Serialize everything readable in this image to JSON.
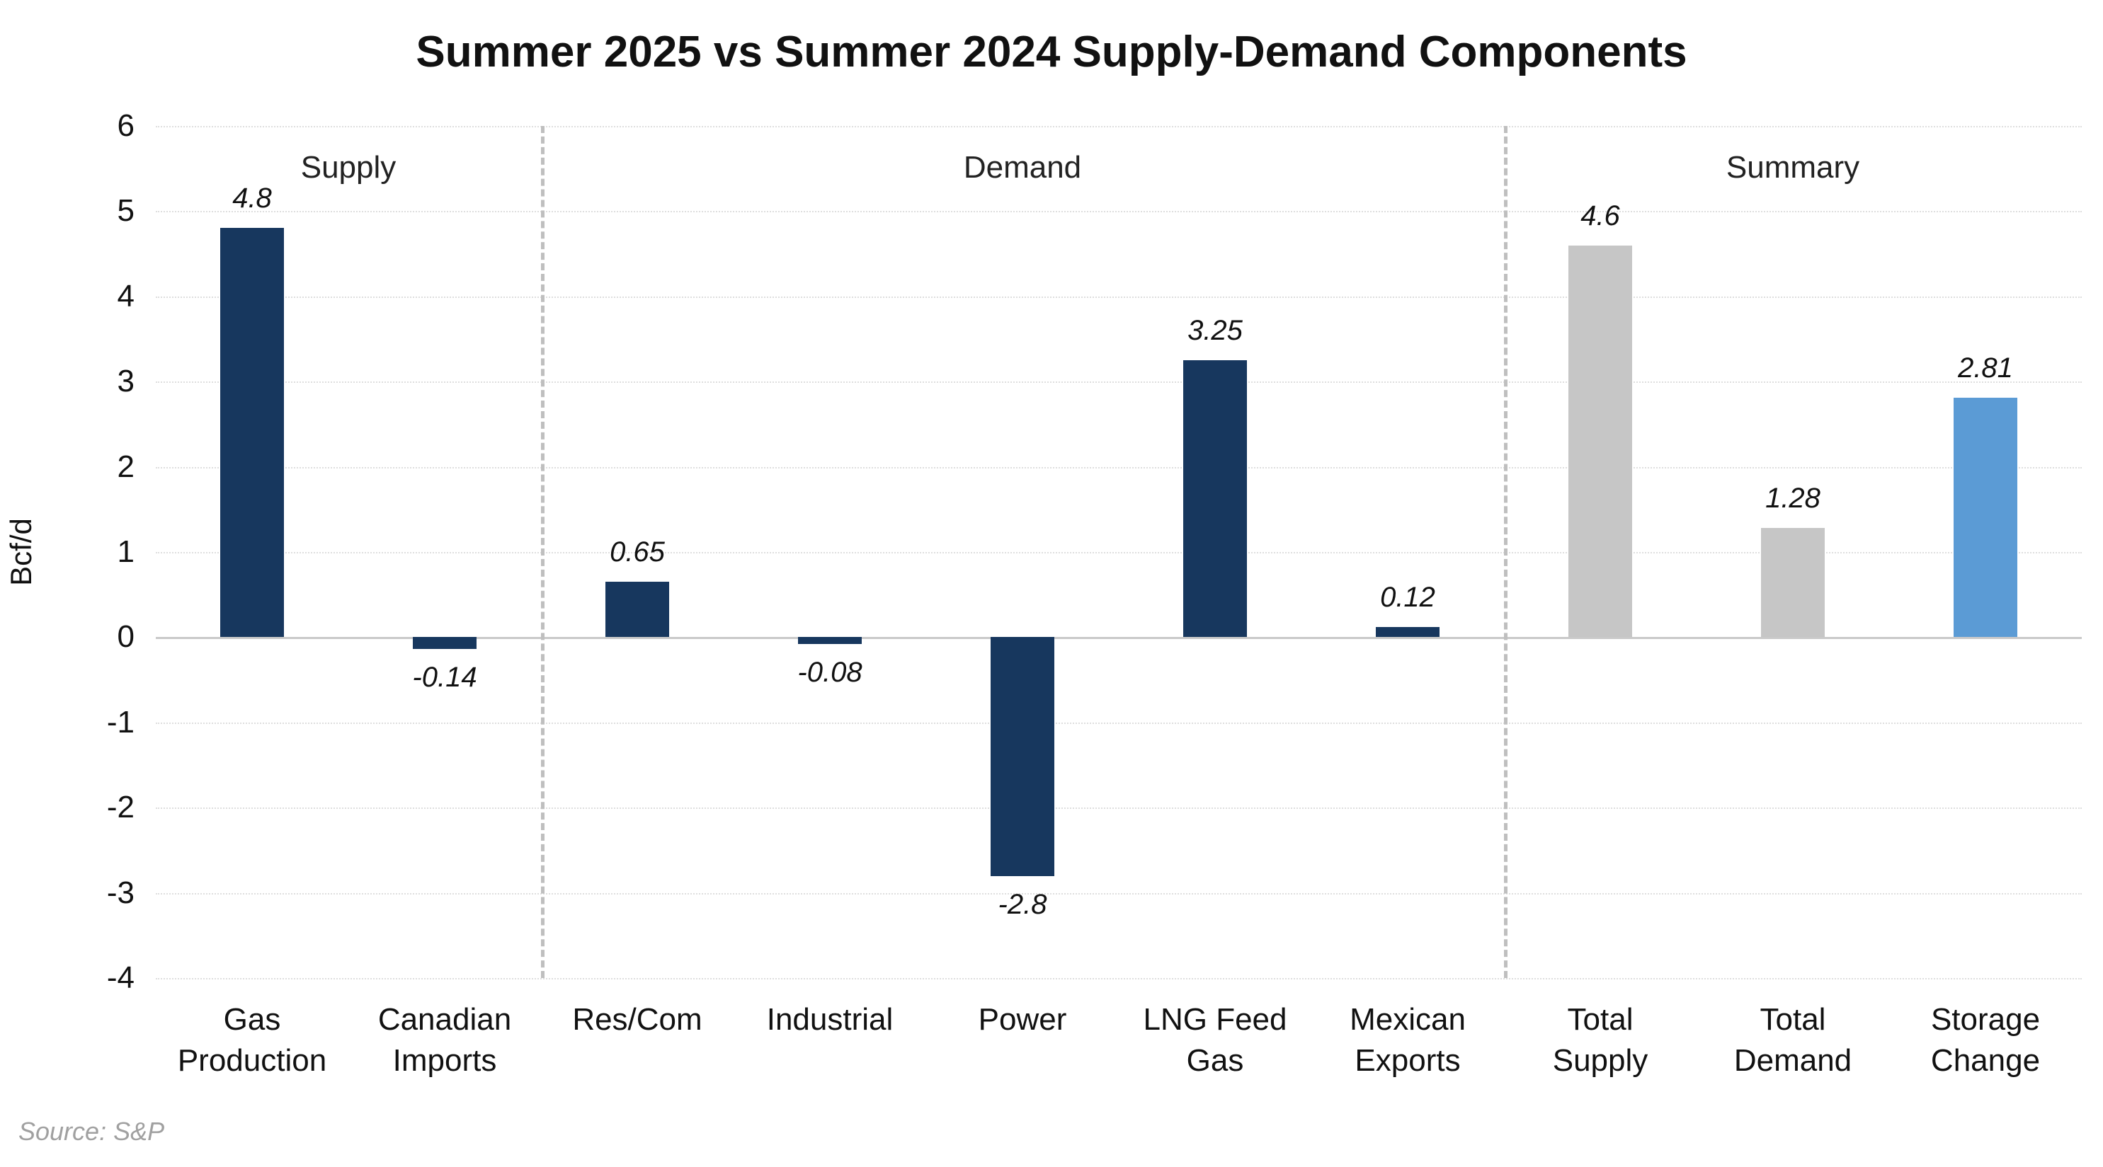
{
  "title": "Summer 2025 vs Summer 2024 Supply-Demand Components",
  "source": "Source: S&P",
  "chart_data": {
    "type": "bar",
    "title": "Summer 2025 vs Summer 2024 Supply-Demand Components",
    "xlabel": "",
    "ylabel": "Bcf/d",
    "ylim": [
      -4,
      6
    ],
    "yticks": [
      6,
      5,
      4,
      3,
      2,
      1,
      0,
      -1,
      -2,
      -3,
      -4
    ],
    "grid": "horizontal-dotted",
    "categories": [
      "Gas\nProduction",
      "Canadian\nImports",
      "Res/Com",
      "Industrial",
      "Power",
      "LNG Feed\nGas",
      "Mexican\nExports",
      "Total\nSupply",
      "Total\nDemand",
      "Storage\nChange"
    ],
    "values": [
      4.8,
      -0.14,
      0.65,
      -0.08,
      -2.8,
      3.25,
      0.12,
      4.6,
      1.28,
      2.81
    ],
    "value_labels": [
      "4.8",
      "-0.14",
      "0.65",
      "-0.08",
      "-2.8",
      "3.25",
      "0.12",
      "4.6",
      "1.28",
      "2.81"
    ],
    "bar_color_keys": [
      "navy",
      "navy",
      "navy",
      "navy",
      "navy",
      "navy",
      "navy",
      "gray",
      "gray",
      "blue"
    ],
    "colors": {
      "navy": "#17375E",
      "gray": "#C6C6C6",
      "blue": "#5B9BD5"
    },
    "sections": [
      {
        "label": "Supply",
        "from": 0,
        "to": 1
      },
      {
        "label": "Demand",
        "from": 2,
        "to": 6
      },
      {
        "label": "Summary",
        "from": 7,
        "to": 9
      }
    ],
    "separators_after_index": [
      1,
      6
    ]
  }
}
